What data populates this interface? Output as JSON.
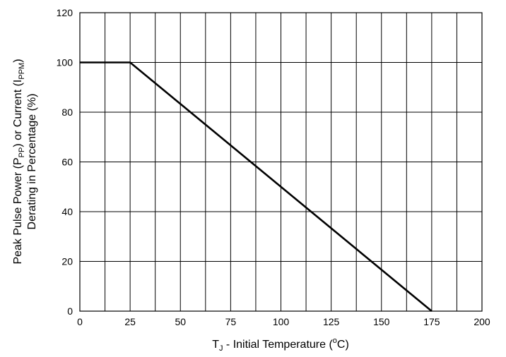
{
  "chart_data": {
    "type": "line",
    "title": "",
    "xlabel": {
      "base": "T",
      "sub": "J",
      "rest": " - Initial Temperature (",
      "sup": "o",
      "end": "C)"
    },
    "ylabel": {
      "line1": {
        "p1": "Peak Pulse Power (P",
        "s1": "PP",
        "p2": ") or Current (I",
        "s2": "PPM",
        "p3": ")"
      },
      "line2": "Derating in Percentage (%)"
    },
    "xlim": [
      0,
      200
    ],
    "ylim": [
      0,
      120
    ],
    "x_ticks": [
      0,
      25,
      50,
      75,
      100,
      125,
      150,
      175,
      200
    ],
    "y_ticks": [
      0,
      20,
      40,
      60,
      80,
      100,
      120
    ],
    "x_grid": [
      0,
      12.5,
      25,
      37.5,
      50,
      62.5,
      75,
      87.5,
      100,
      112.5,
      125,
      137.5,
      150,
      162.5,
      175,
      187.5,
      200
    ],
    "y_grid": [
      0,
      20,
      40,
      60,
      80,
      100,
      120
    ],
    "grid": true,
    "series": [
      {
        "color": "#000000",
        "points": [
          [
            0,
            100
          ],
          [
            25,
            100
          ],
          [
            175,
            0
          ]
        ]
      }
    ]
  }
}
